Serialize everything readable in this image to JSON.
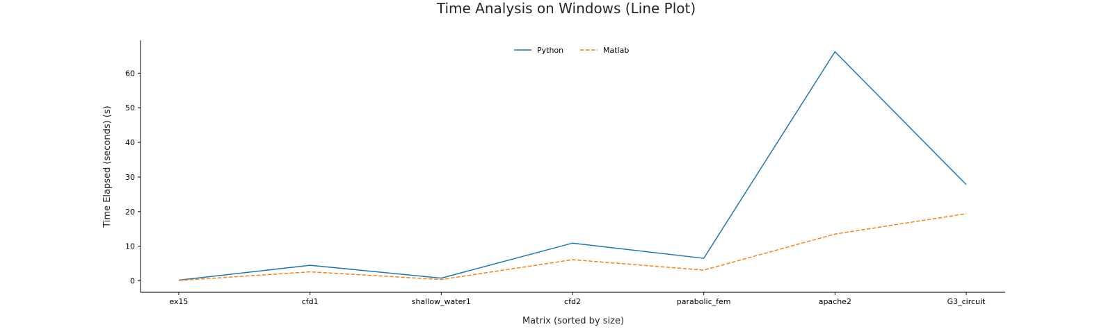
{
  "chart_data": {
    "type": "line",
    "title": "Time Analysis on Windows (Line Plot)",
    "xlabel": "Matrix (sorted by size)",
    "ylabel": "Time Elapsed (seconds) (s)",
    "categories": [
      "ex15",
      "cfd1",
      "shallow_water1",
      "cfd2",
      "parabolic_fem",
      "apache2",
      "G3_circuit"
    ],
    "ylim": [
      -3.3,
      69.5
    ],
    "yticks": [
      0,
      10,
      20,
      30,
      40,
      50,
      60
    ],
    "grid": false,
    "legend_position": "top-center",
    "series": [
      {
        "name": "Python",
        "color": "#1f77b4",
        "dash": "solid",
        "values": [
          0.2,
          4.5,
          0.8,
          10.9,
          6.5,
          66.2,
          27.8
        ]
      },
      {
        "name": "Matlab",
        "color": "#ff7f0e",
        "dash": "dashed",
        "values": [
          0.1,
          2.6,
          0.4,
          6.1,
          3.1,
          13.5,
          19.4
        ]
      }
    ]
  }
}
